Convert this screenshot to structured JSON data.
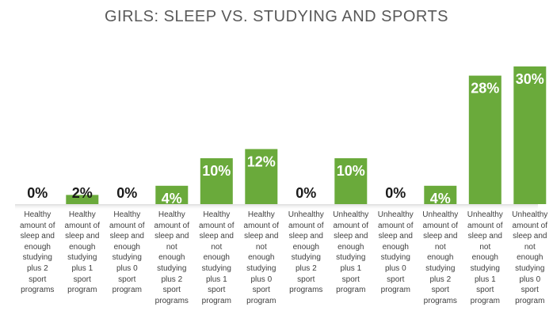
{
  "chart_data": {
    "type": "bar",
    "title": "GIRLS: SLEEP VS. STUDYING AND SPORTS",
    "xlabel": "",
    "ylabel": "",
    "ylim": [
      0,
      30
    ],
    "grid": false,
    "legend": "none",
    "bar_color": "#6aaa3b",
    "categories": [
      "Healthy amount of sleep and enough studying plus 2 sport programs",
      "Healthy amount of sleep and enough studying plus 1 sport program",
      "Healthy amount of sleep and enough studying plus 0 sport program",
      "Healthy amount of sleep and not enough studying plus 2 sport programs",
      "Healthy amount of sleep and not enough studying plus 1 sport program",
      "Healthy amount of sleep and not enough studying plus 0 sport program",
      "Unhealthy amount of sleep and enough studying plus 2 sport programs",
      "Unhealthy amount of sleep and enough studying plus 1 sport program",
      "Unhealthy amount of sleep and enough studying plus 0 sport program",
      "Unhealthy amount of sleep and not enough studying plus 2 sport programs",
      "Unhealthy amount of sleep and not enough studying plus 1 sport program",
      "Unhealthy amount of sleep and not enough studying plus 0 sport program"
    ],
    "category_lines": [
      "Healthy\namount of\nsleep and\nenough\nstudying\nplus 2\nsport\nprograms",
      "Healthy\namount of\nsleep and\nenough\nstudying\nplus 1\nsport\nprogram",
      "Healthy\namount of\nsleep and\nenough\nstudying\nplus 0\nsport\nprogram",
      "Healthy\namount of\nsleep and\nnot\nenough\nstudying\nplus 2\nsport\nprograms",
      "Healthy\namount of\nsleep and\nnot\nenough\nstudying\nplus 1\nsport\nprogram",
      "Healthy\namount of\nsleep and\nnot\nenough\nstudying\nplus 0\nsport\nprogram",
      "Unhealthy\namount of\nsleep and\nenough\nstudying\nplus 2\nsport\nprograms",
      "Unhealthy\namount of\nsleep and\nenough\nstudying\nplus 1\nsport\nprogram",
      "Unhealthy\namount of\nsleep and\nenough\nstudying\nplus 0\nsport\nprogram",
      "Unhealthy\namount of\nsleep and\nnot\nenough\nstudying\nplus 2\nsport\nprograms",
      "Unhealthy\namount of\nsleep and\nnot\nenough\nstudying\nplus 1\nsport\nprogram",
      "Unhealthy\namount of\nsleep and\nnot\nenough\nstudying\nplus 0\nsport\nprogram"
    ],
    "values": [
      0,
      2,
      0,
      4,
      10,
      12,
      0,
      10,
      0,
      4,
      28,
      30
    ],
    "data_labels": [
      "0%",
      "2%",
      "0%",
      "4%",
      "10%",
      "12%",
      "0%",
      "10%",
      "0%",
      "4%",
      "28%",
      "30%"
    ]
  }
}
